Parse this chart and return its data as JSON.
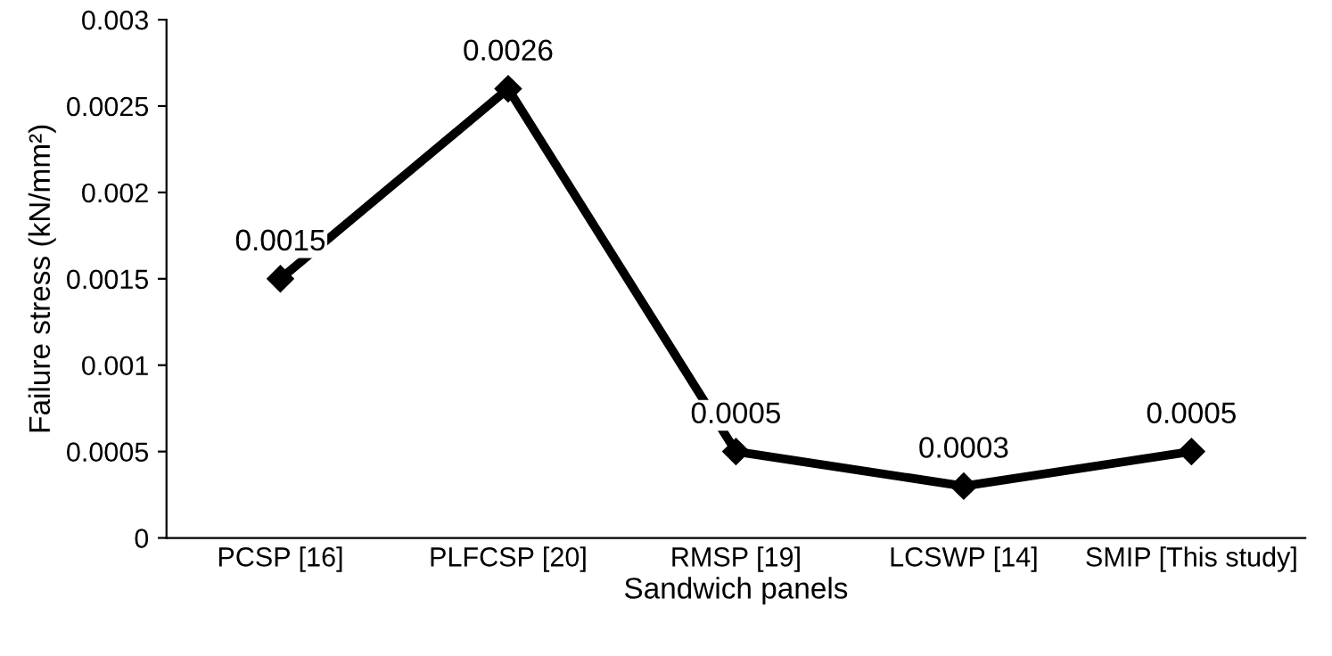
{
  "chart_data": {
    "type": "line",
    "categories": [
      "PCSP [16]",
      "PLFCSP [20]",
      "RMSP [19]",
      "LCSWP [14]",
      "SMIP [This study]"
    ],
    "series": [
      {
        "color": "#000000",
        "values": [
          0.0015,
          0.0026,
          0.0005,
          0.0003,
          0.0005
        ]
      }
    ],
    "xlabel": "Sandwich panels",
    "ylabel": "Failure stress (kN/mm²)",
    "ylim": [
      0,
      0.003
    ],
    "yticks": [
      0,
      0.0005,
      0.001,
      0.0015,
      0.002,
      0.0025,
      0.003
    ],
    "data_labels": true,
    "marker": "diamond",
    "line_style": "solid",
    "grid": false,
    "legend": false
  }
}
